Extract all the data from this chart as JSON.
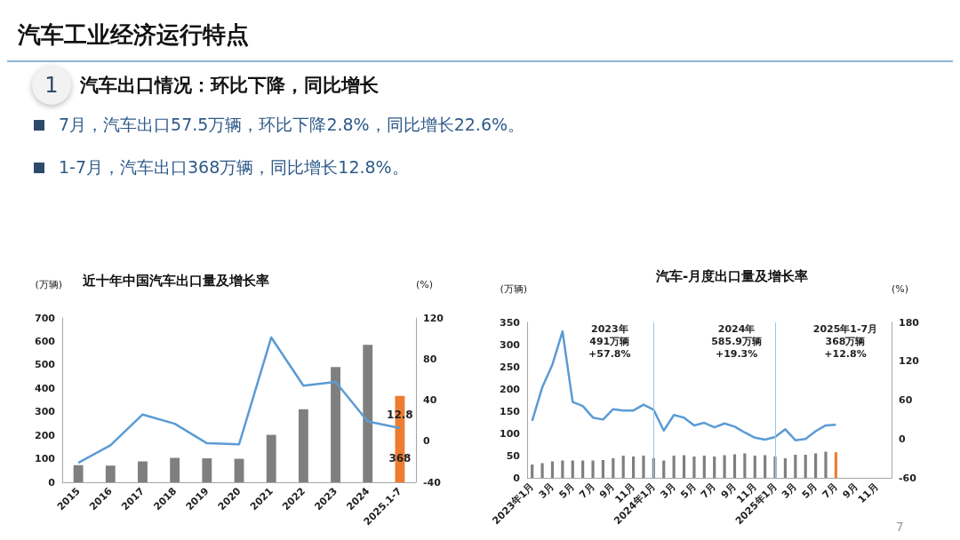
{
  "chart_data": [
    {
      "type": "bar",
      "title": "近十年中国汽车出口量及增长率",
      "ylabel": "(万辆)",
      "y2label": "(%)",
      "annotations": [
        "汽车工业经济运行特点",
        "1",
        "汽车出口情况：环比下降，同比增长",
        "7月，汽车出口57.5万辆，环比下降2.8%，同比增长22.6%。",
        "1-7月，汽车出口368万辆，同比增长12.8%。"
      ],
      "categories": [
        "2015",
        "2016",
        "2017",
        "2018",
        "2019",
        "2020",
        "2021",
        "2022",
        "2023",
        "2024",
        "2025.1-7"
      ],
      "series": [
        {
          "colors": [
            "#7f7f7f",
            "#7f7f7f",
            "#7f7f7f",
            "#7f7f7f",
            "#7f7f7f",
            "#7f7f7f",
            "#7f7f7f",
            "#7f7f7f",
            "#7f7f7f",
            "#7f7f7f",
            "#ed7d31"
          ],
          "values": [
            73,
            71,
            89,
            104,
            102,
            100,
            202,
            311,
            491,
            586,
            368
          ],
          "value_labels": [
            null,
            null,
            null,
            null,
            null,
            null,
            null,
            null,
            null,
            null,
            "368"
          ]
        },
        {
          "type": "line",
          "axis": "y2",
          "color": "#5b9bd5",
          "values": [
            -21,
            -4,
            26,
            17,
            -2,
            -3,
            101,
            54,
            57.8,
            19.3,
            12.8
          ],
          "value_labels": [
            null,
            null,
            null,
            null,
            null,
            null,
            null,
            null,
            null,
            null,
            "12.8"
          ]
        }
      ],
      "ylim": [
        0,
        700
      ],
      "yticks": [
        0,
        100,
        200,
        300,
        400,
        500,
        600,
        700
      ],
      "y2lim": [
        -40,
        120
      ],
      "y2ticks": [
        -40,
        0,
        40,
        80,
        120
      ],
      "marker": "none"
    },
    {
      "type": "bar",
      "title": "汽车-月度出口量及增长率",
      "ylabel": "(万辆)",
      "y2label": "(%)",
      "annotations": [
        "2023年\n491万辆\n+57.8%",
        "2024年\n585.9万辆\n+19.3%",
        "2025年1-7月\n368万辆\n+12.8%",
        "7"
      ],
      "categories": [
        "2023年1月",
        null,
        "3月",
        null,
        "5月",
        null,
        "7月",
        null,
        "9月",
        null,
        "11月",
        null,
        "2024年1月",
        null,
        "3月",
        null,
        "5月",
        null,
        "7月",
        null,
        "9月",
        null,
        "11月",
        null,
        "2025年1月",
        null,
        "3月",
        null,
        "5月",
        null,
        "7月",
        null,
        "9月",
        null,
        "11月",
        null
      ],
      "series": [
        {
          "colors": [
            "#7f7f7f",
            "#7f7f7f",
            "#7f7f7f",
            "#7f7f7f",
            "#7f7f7f",
            "#7f7f7f",
            "#7f7f7f",
            "#7f7f7f",
            "#7f7f7f",
            "#7f7f7f",
            "#7f7f7f",
            "#7f7f7f",
            "#7f7f7f",
            "#7f7f7f",
            "#7f7f7f",
            "#7f7f7f",
            "#7f7f7f",
            "#7f7f7f",
            "#7f7f7f",
            "#7f7f7f",
            "#7f7f7f",
            "#7f7f7f",
            "#7f7f7f",
            "#7f7f7f",
            "#7f7f7f",
            "#7f7f7f",
            "#7f7f7f",
            "#7f7f7f",
            "#7f7f7f",
            "#7f7f7f",
            "#ed7d31",
            "#7f7f7f",
            "#7f7f7f",
            "#7f7f7f",
            "#7f7f7f",
            "#7f7f7f"
          ],
          "values": [
            30,
            33,
            37,
            39,
            39,
            39,
            39,
            40,
            44,
            50,
            48,
            50,
            44,
            39,
            50,
            51,
            48,
            50,
            48,
            51,
            53,
            55,
            50,
            51,
            48,
            44,
            52,
            52,
            55,
            59,
            57.5,
            null,
            null,
            null,
            null,
            null
          ]
        },
        {
          "type": "line",
          "axis": "y2",
          "color": "#5b9bd5",
          "values": [
            28,
            80,
            115,
            166,
            57,
            51,
            33,
            30,
            46,
            44,
            44,
            53,
            45,
            13,
            37,
            33,
            21,
            25,
            18,
            24,
            19,
            10,
            2,
            -1,
            3,
            15,
            -2,
            0,
            12,
            21,
            22,
            null,
            null,
            null,
            null,
            null
          ]
        }
      ],
      "ylim": [
        0,
        350
      ],
      "yticks": [
        0,
        50,
        100,
        150,
        200,
        250,
        300,
        350
      ],
      "y2lim": [
        -60,
        180
      ],
      "y2ticks": [
        -60,
        0,
        60,
        120,
        180
      ],
      "marker": "none",
      "ref_lines": [
        {
          "axis": "x",
          "value": "2024年1月",
          "color": "#9dc3e6"
        },
        {
          "axis": "x",
          "value": "2025年1月",
          "color": "#9dc3e6"
        }
      ]
    }
  ]
}
